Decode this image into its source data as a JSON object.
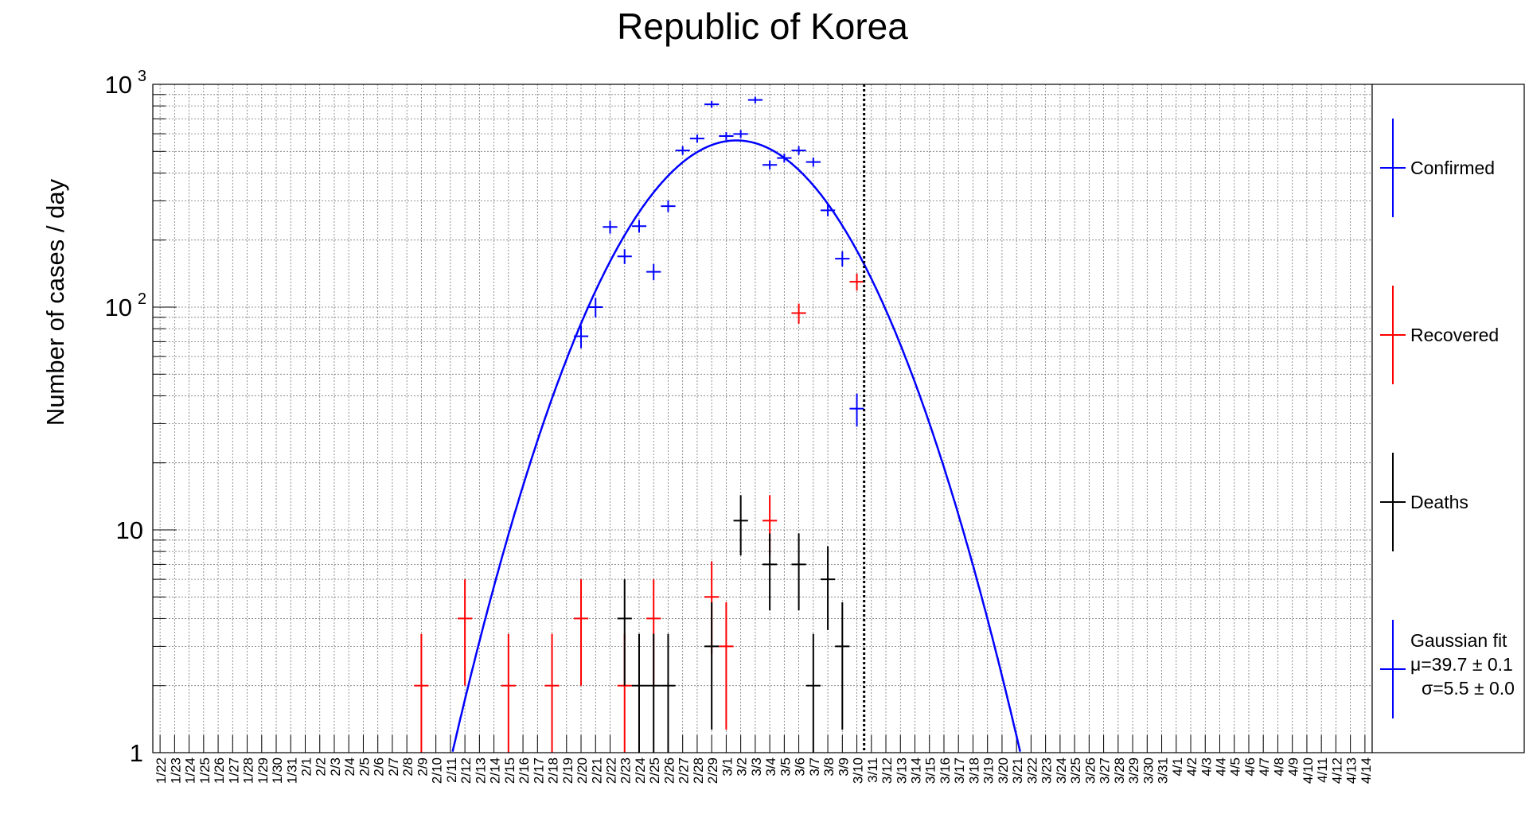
{
  "chart_data": {
    "type": "scatter",
    "title": "Republic of Korea",
    "xlabel": "",
    "ylabel": "Number of cases / day",
    "y_scale": "log",
    "ylim": [
      1,
      1000
    ],
    "y_ticks": [
      {
        "value": 1,
        "label": "1"
      },
      {
        "value": 10,
        "label": "10"
      },
      {
        "value": 100,
        "label": "10",
        "exp": "2"
      },
      {
        "value": 1000,
        "label": "10",
        "exp": "3"
      }
    ],
    "categories": [
      "1/22",
      "1/23",
      "1/24",
      "1/25",
      "1/26",
      "1/27",
      "1/28",
      "1/29",
      "1/30",
      "1/31",
      "2/1",
      "2/2",
      "2/3",
      "2/4",
      "2/5",
      "2/6",
      "2/7",
      "2/8",
      "2/9",
      "2/10",
      "2/11",
      "2/12",
      "2/13",
      "2/14",
      "2/15",
      "2/16",
      "2/17",
      "2/18",
      "2/19",
      "2/20",
      "2/21",
      "2/22",
      "2/23",
      "2/24",
      "2/25",
      "2/26",
      "2/27",
      "2/28",
      "2/29",
      "3/1",
      "3/2",
      "3/3",
      "3/4",
      "3/5",
      "3/6",
      "3/7",
      "3/8",
      "3/9",
      "3/10",
      "3/11",
      "3/12",
      "3/13",
      "3/14",
      "3/15",
      "3/16",
      "3/17",
      "3/18",
      "3/19",
      "3/20",
      "3/21",
      "3/22",
      "3/23",
      "3/24",
      "3/25",
      "3/26",
      "3/27",
      "3/28",
      "3/29",
      "3/30",
      "3/31",
      "4/1",
      "4/2",
      "4/3",
      "4/4",
      "4/5",
      "4/6",
      "4/7",
      "4/8",
      "4/9",
      "4/10",
      "4/11",
      "4/12",
      "4/13",
      "4/14"
    ],
    "vline_category": "3/10",
    "grid": true,
    "legend_position": "right",
    "series": [
      {
        "name": "Confirmed",
        "color": "#0000ff",
        "points": [
          {
            "x": "2/20",
            "y": 74
          },
          {
            "x": "2/21",
            "y": 100
          },
          {
            "x": "2/22",
            "y": 229
          },
          {
            "x": "2/23",
            "y": 169
          },
          {
            "x": "2/24",
            "y": 231
          },
          {
            "x": "2/25",
            "y": 144
          },
          {
            "x": "2/26",
            "y": 284
          },
          {
            "x": "2/27",
            "y": 505
          },
          {
            "x": "2/28",
            "y": 571
          },
          {
            "x": "2/29",
            "y": 813
          },
          {
            "x": "3/1",
            "y": 586
          },
          {
            "x": "3/2",
            "y": 599
          },
          {
            "x": "3/3",
            "y": 851
          },
          {
            "x": "3/4",
            "y": 435
          },
          {
            "x": "3/5",
            "y": 467
          },
          {
            "x": "3/6",
            "y": 505
          },
          {
            "x": "3/7",
            "y": 448
          },
          {
            "x": "3/8",
            "y": 272
          },
          {
            "x": "3/9",
            "y": 165
          },
          {
            "x": "3/10",
            "y": 35
          }
        ]
      },
      {
        "name": "Recovered",
        "color": "#ff0000",
        "points": [
          {
            "x": "2/9",
            "y": 2
          },
          {
            "x": "2/12",
            "y": 4
          },
          {
            "x": "2/15",
            "y": 2
          },
          {
            "x": "2/18",
            "y": 2
          },
          {
            "x": "2/20",
            "y": 4
          },
          {
            "x": "2/23",
            "y": 2
          },
          {
            "x": "2/25",
            "y": 4
          },
          {
            "x": "2/29",
            "y": 5
          },
          {
            "x": "3/1",
            "y": 3
          },
          {
            "x": "3/4",
            "y": 11
          },
          {
            "x": "3/6",
            "y": 94
          },
          {
            "x": "3/10",
            "y": 130
          }
        ]
      },
      {
        "name": "Deaths",
        "color": "#000000",
        "points": [
          {
            "x": "2/23",
            "y": 4
          },
          {
            "x": "2/24",
            "y": 2
          },
          {
            "x": "2/25",
            "y": 2
          },
          {
            "x": "2/26",
            "y": 2
          },
          {
            "x": "2/29",
            "y": 3
          },
          {
            "x": "3/2",
            "y": 11
          },
          {
            "x": "3/4",
            "y": 7
          },
          {
            "x": "3/6",
            "y": 7
          },
          {
            "x": "3/7",
            "y": 2
          },
          {
            "x": "3/8",
            "y": 6
          },
          {
            "x": "3/9",
            "y": 3
          }
        ]
      }
    ],
    "fit": {
      "name": "Gaussian fit",
      "color": "#0000ff",
      "mu_label": "μ=39.7 ± 0.1",
      "sigma_label": "σ=5.5 ± 0.0",
      "mu": 39.7,
      "sigma": 5.5,
      "peak": 560
    }
  }
}
